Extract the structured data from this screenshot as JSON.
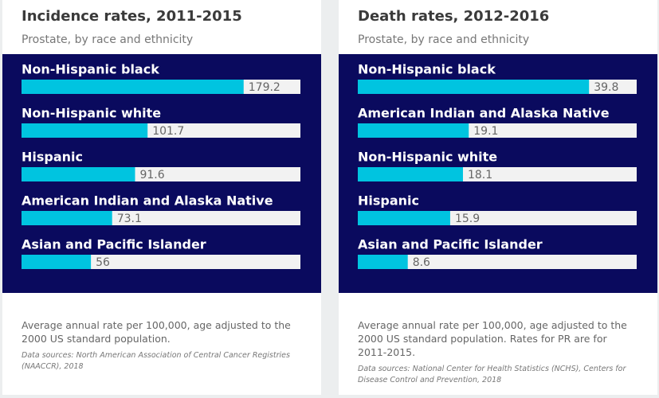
{
  "chart_data": [
    {
      "type": "bar",
      "title": "Incidence rates, 2011-2015",
      "subtitle": "Prostate, by race and ethnicity",
      "categories": [
        "Non-Hispanic black",
        "Non-Hispanic white",
        "Hispanic",
        "American Indian and Alaska Native",
        "Asian and Pacific Islander"
      ],
      "values": [
        179.2,
        101.7,
        91.6,
        73.1,
        56
      ],
      "color": "#00c4e0",
      "xlim": [
        0,
        225
      ],
      "note": "Average annual rate per 100,000, age adjusted to the 2000 US standard population.",
      "source": "Data sources: North American Association of Central Cancer Registries (NAACCR), 2018"
    },
    {
      "type": "bar",
      "title": "Death rates, 2012-2016",
      "subtitle": "Prostate, by race and ethnicity",
      "categories": [
        "Non-Hispanic black",
        "American Indian and Alaska Native",
        "Non-Hispanic white",
        "Hispanic",
        "Asian and Pacific Islander"
      ],
      "values": [
        39.8,
        19.1,
        18.1,
        15.9,
        8.6
      ],
      "color": "#00c4e0",
      "xlim": [
        0,
        48
      ],
      "note": "Average annual rate per 100,000, age adjusted to the 2000 US standard population. Rates for PR are for 2011-2015.",
      "source": "Data sources: National Center for Health Statistics (NCHS), Centers for Disease Control and Prevention, 2018"
    }
  ]
}
